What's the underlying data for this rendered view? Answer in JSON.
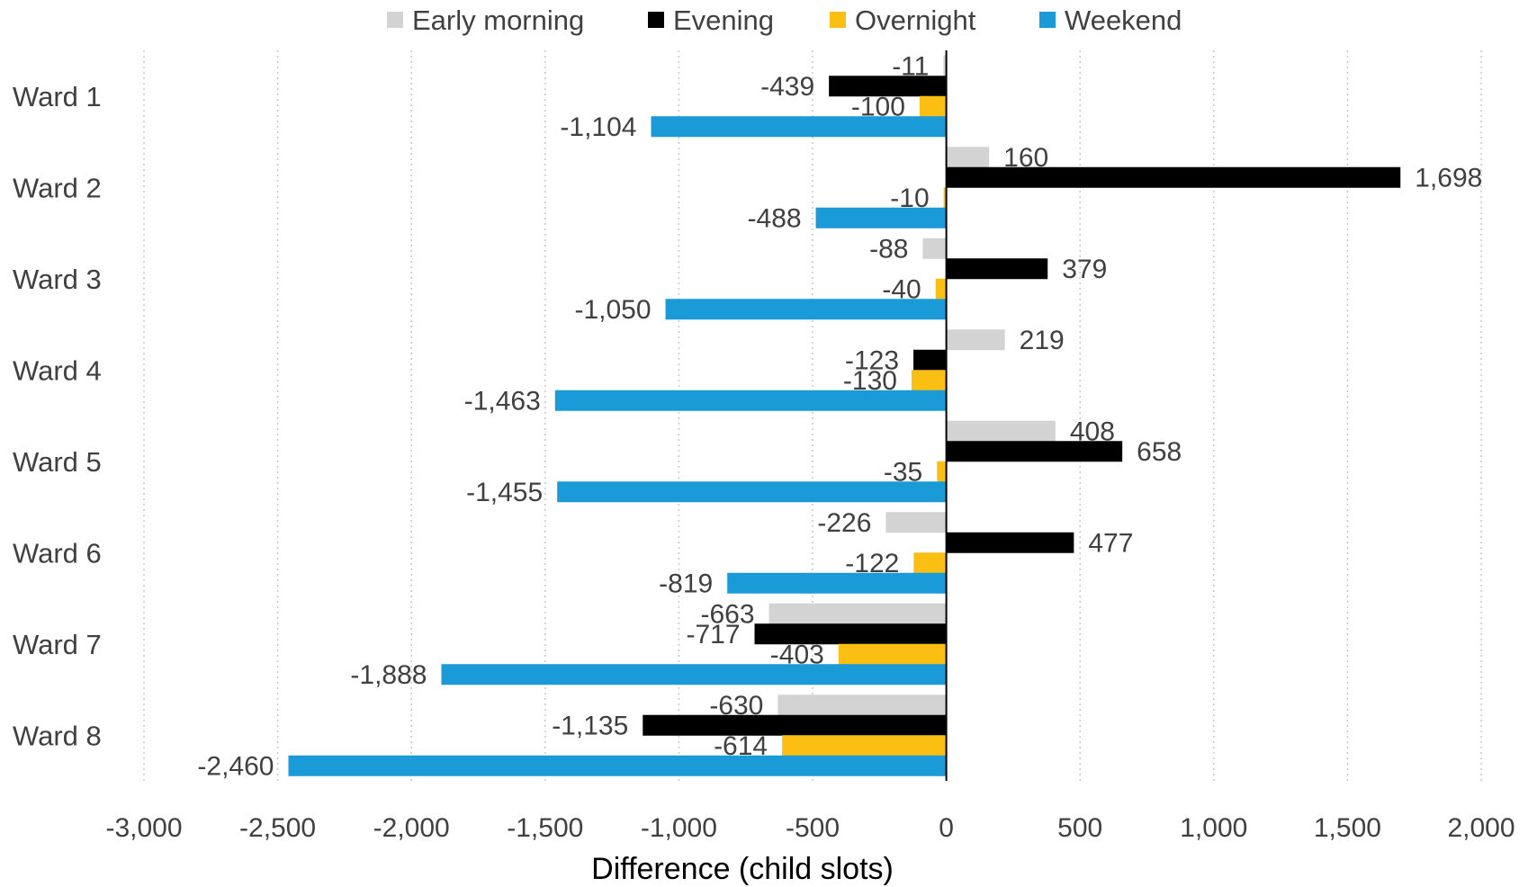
{
  "chart_data": {
    "type": "bar",
    "orientation": "horizontal",
    "title": "",
    "xlabel": "Difference (child slots)",
    "ylabel": "",
    "xlim": [
      -3000,
      2000
    ],
    "x_ticks": [
      -3000,
      -2500,
      -2000,
      -1500,
      -1000,
      -500,
      0,
      500,
      1000,
      1500,
      2000
    ],
    "x_tick_labels": [
      "-3,000",
      "-2,500",
      "-2,000",
      "-1,500",
      "-1,000",
      "-500",
      "0",
      "500",
      "1,000",
      "1,500",
      "2,000"
    ],
    "grid": "vertical dotted",
    "legend_position": "top",
    "categories": [
      "Ward 1",
      "Ward 2",
      "Ward 3",
      "Ward 4",
      "Ward 5",
      "Ward 6",
      "Ward 7",
      "Ward 8"
    ],
    "series": [
      {
        "name": "Early morning",
        "color": "#d3d3d3",
        "values": [
          -11,
          160,
          -88,
          219,
          408,
          -226,
          -663,
          -630
        ],
        "labels": [
          "-11",
          "160",
          "-88",
          "219",
          "408",
          "-226",
          "-663",
          "-630"
        ]
      },
      {
        "name": "Evening",
        "color": "#000000",
        "values": [
          -439,
          1698,
          379,
          -123,
          658,
          477,
          -717,
          -1135
        ],
        "labels": [
          "-439",
          "1,698",
          "379",
          "-123",
          "658",
          "477",
          "-717",
          "-1,135"
        ]
      },
      {
        "name": "Overnight",
        "color": "#fbbf14",
        "values": [
          -100,
          -10,
          -40,
          -130,
          -35,
          -122,
          -403,
          -614
        ],
        "labels": [
          "-100",
          "-10",
          "-40",
          "-130",
          "-35",
          "-122",
          "-403",
          "-614"
        ]
      },
      {
        "name": "Weekend",
        "color": "#1a9ad6",
        "values": [
          -1104,
          -488,
          -1050,
          -1463,
          -1455,
          -819,
          -1888,
          -2460
        ],
        "labels": [
          "-1,104",
          "-488",
          "-1,050",
          "-1,463",
          "-1,455",
          "-819",
          "-1,888",
          "-2,460"
        ]
      }
    ]
  }
}
